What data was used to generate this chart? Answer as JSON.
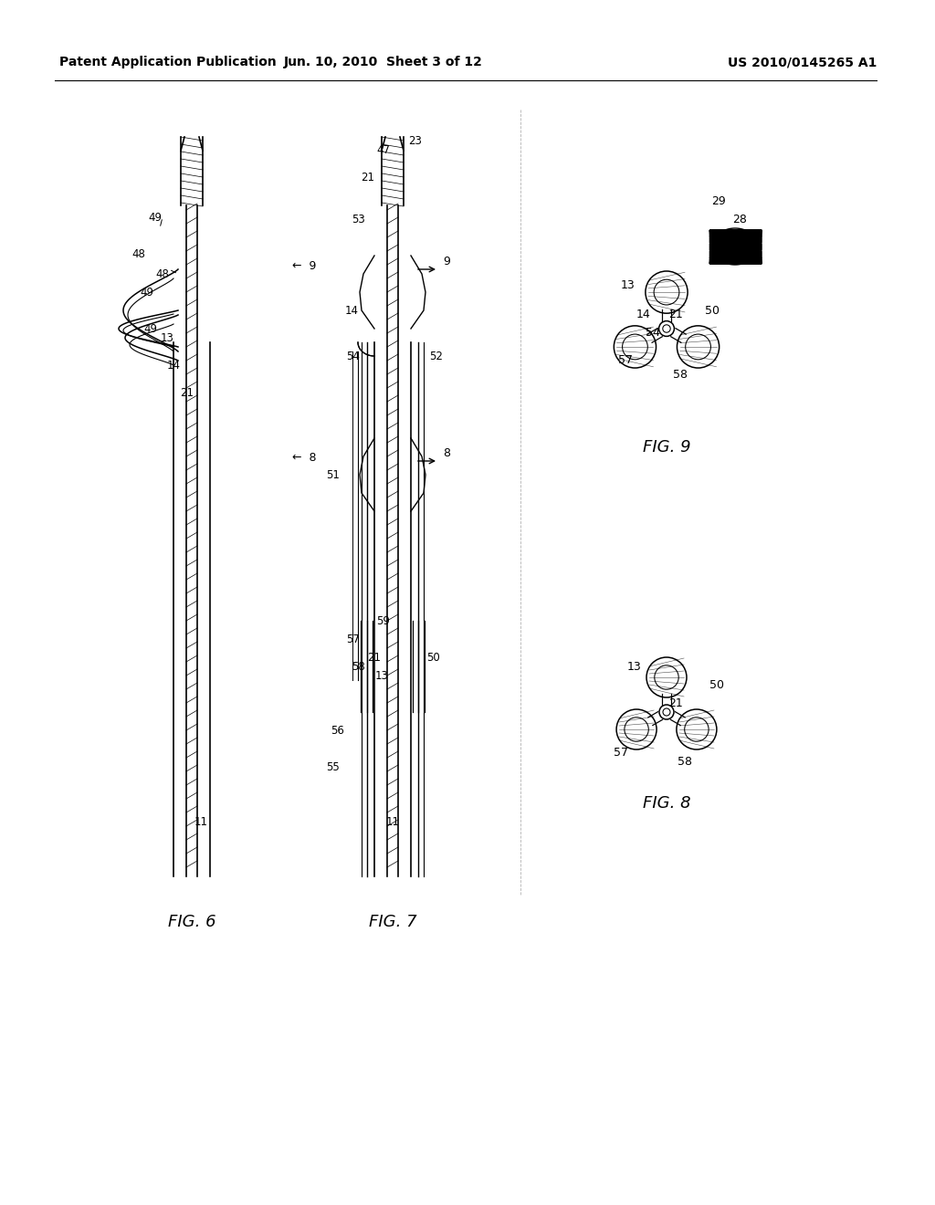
{
  "header_left": "Patent Application Publication",
  "header_mid": "Jun. 10, 2010  Sheet 3 of 12",
  "header_right": "US 2010/0145265 A1",
  "bg_color": "#ffffff",
  "line_color": "#000000",
  "fig_labels": [
    "FIG. 6",
    "FIG. 7",
    "FIG. 8",
    "FIG. 9"
  ],
  "ref_numbers": {
    "fig6": [
      "49",
      "48",
      "49",
      "13",
      "14",
      "21",
      "48",
      "49",
      "11"
    ],
    "fig7": [
      "21",
      "53",
      "14",
      "54",
      "51",
      "57",
      "58",
      "56",
      "55",
      "21",
      "13",
      "59",
      "50",
      "52",
      "47",
      "23",
      "11",
      "9",
      "8"
    ],
    "fig8": [
      "50",
      "21",
      "57",
      "13",
      "58"
    ],
    "fig9": [
      "29",
      "28",
      "13",
      "14",
      "54",
      "50",
      "58",
      "57"
    ]
  }
}
